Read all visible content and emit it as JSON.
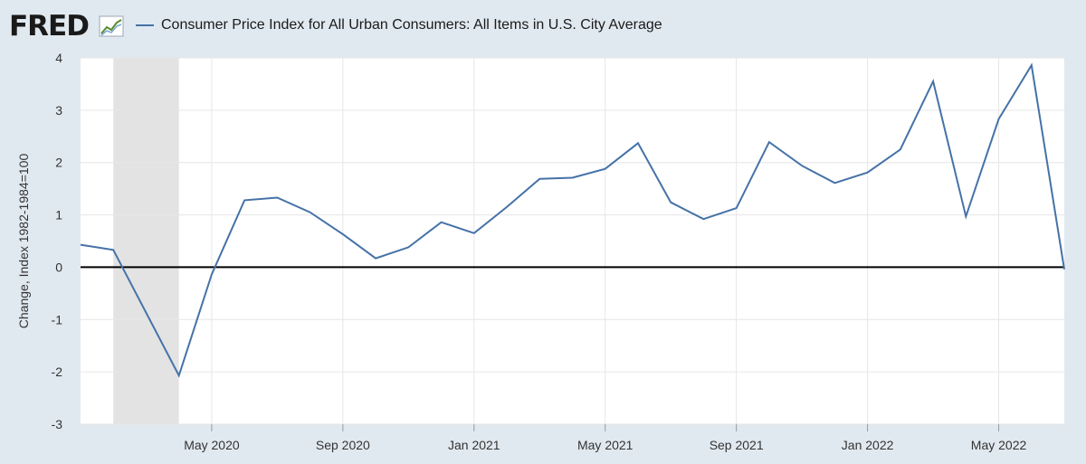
{
  "header": {
    "logo_text": "FRED",
    "logo_icon": "line-graph-icon"
  },
  "colors": {
    "background": "#e1e9f0",
    "plot_background": "#ffffff",
    "series": "#4572a7",
    "recession": "#e3e3e3",
    "zero_line": "#000000"
  },
  "chart_data": {
    "type": "line",
    "title": "",
    "xlabel": "",
    "ylabel": "Change, Index 1982-1984=100",
    "ylim": [
      -3,
      4
    ],
    "yticks": [
      4,
      3,
      2,
      1,
      0,
      -1,
      -2,
      -3
    ],
    "xlim": [
      "2020-01",
      "2022-07"
    ],
    "xticks": [
      {
        "label": "May 2020",
        "x": "2020-05"
      },
      {
        "label": "Sep 2020",
        "x": "2020-09"
      },
      {
        "label": "Jan 2021",
        "x": "2021-01"
      },
      {
        "label": "May 2021",
        "x": "2021-05"
      },
      {
        "label": "Sep 2021",
        "x": "2021-09"
      },
      {
        "label": "Jan 2022",
        "x": "2022-01"
      },
      {
        "label": "May 2022",
        "x": "2022-05"
      }
    ],
    "grid": true,
    "legend_position": "top-left",
    "recession_shading": [
      {
        "start": "2020-02",
        "end": "2020-04"
      }
    ],
    "series": [
      {
        "name": "Consumer Price Index for All Urban Consumers: All Items in U.S. City Average",
        "x": [
          "2020-01",
          "2020-02",
          "2020-03",
          "2020-04",
          "2020-05",
          "2020-06",
          "2020-07",
          "2020-08",
          "2020-09",
          "2020-10",
          "2020-11",
          "2020-12",
          "2021-01",
          "2021-02",
          "2021-03",
          "2021-04",
          "2021-05",
          "2021-06",
          "2021-07",
          "2021-08",
          "2021-09",
          "2021-10",
          "2021-11",
          "2021-12",
          "2022-01",
          "2022-02",
          "2022-03",
          "2022-04",
          "2022-05",
          "2022-06",
          "2022-07"
        ],
        "values": [
          0.43,
          0.33,
          -0.87,
          -2.07,
          -0.14,
          1.28,
          1.33,
          1.05,
          0.63,
          0.17,
          0.38,
          0.86,
          0.65,
          1.15,
          1.69,
          1.71,
          1.88,
          2.37,
          1.24,
          0.92,
          1.13,
          2.39,
          1.94,
          1.61,
          1.81,
          2.25,
          3.55,
          0.97,
          2.83,
          3.86,
          -0.04
        ]
      }
    ]
  }
}
